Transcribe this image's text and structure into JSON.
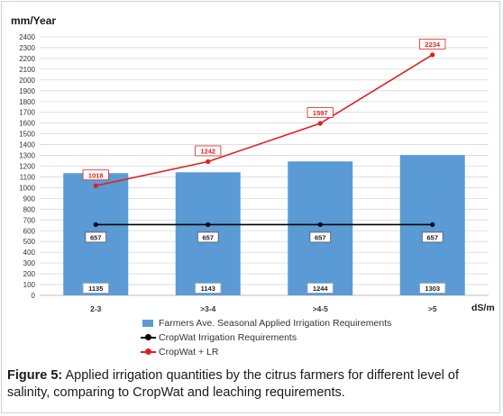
{
  "chart_data": {
    "type": "bar",
    "ylabel": "mm/Year",
    "xlabel": "dS/m",
    "ylim": [
      0,
      2400
    ],
    "ytick_step": 100,
    "grid": true,
    "legend_position": "bottom",
    "categories": [
      "2-3",
      ">3-4",
      ">4-5",
      ">5"
    ],
    "series": [
      {
        "name": "Farmers Ave. Seasonal Applied Irrigation Requirements",
        "kind": "bar",
        "values": [
          1135,
          1143,
          1244,
          1303
        ],
        "color": "#5b9bd5"
      },
      {
        "name": "CropWat Irrigation Requirements",
        "kind": "line",
        "values": [
          657,
          657,
          657,
          657
        ],
        "color": "#000000"
      },
      {
        "name": "CropWat + LR",
        "kind": "line",
        "values": [
          1018,
          1242,
          1597,
          2234
        ],
        "color": "#e02020"
      }
    ]
  },
  "caption": {
    "label": "Figure 5:",
    "text": " Applied irrigation quantities by the citrus farmers for different level of salinity, comparing to CropWat and leaching requirements."
  }
}
